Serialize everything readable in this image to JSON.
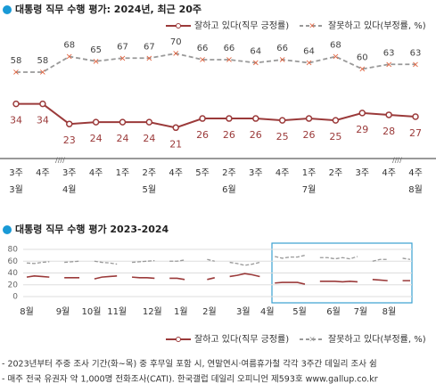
{
  "chart_data": [
    {
      "type": "line",
      "title": "대통령 직무 수행 평가: 2024년, 최근 20주",
      "categories": [
        "3주",
        "4주",
        "3주",
        "4주",
        "1주",
        "2주",
        "4주",
        "5주",
        "2주",
        "3주",
        "4주",
        "1주",
        "2주",
        "3주",
        "4주",
        "4주"
      ],
      "months": [
        "3월",
        null,
        "4월",
        null,
        null,
        "5월",
        null,
        null,
        "6월",
        null,
        null,
        "7월",
        null,
        null,
        null,
        "8월"
      ],
      "series": [
        {
          "name": "잘하고 있다(직무 긍정률)",
          "color": "#9b3a3a",
          "values": [
            34,
            34,
            23,
            24,
            24,
            24,
            21,
            26,
            26,
            26,
            25,
            26,
            25,
            29,
            28,
            27
          ]
        },
        {
          "name": "잘못하고 있다(부정률, %)",
          "color": "#999999",
          "marker_color": "#e0603c",
          "values": [
            58,
            58,
            68,
            65,
            67,
            67,
            70,
            66,
            66,
            64,
            66,
            64,
            68,
            60,
            63,
            63
          ]
        }
      ]
    },
    {
      "type": "line",
      "title": "대통령 직무 수행 평가 2023-2024",
      "x": [
        0,
        1,
        2,
        3,
        4,
        5,
        6,
        7,
        8,
        9,
        10,
        11,
        12,
        13,
        14,
        15,
        16,
        17,
        18,
        19,
        20,
        21,
        22,
        23,
        24,
        25,
        26,
        27,
        28,
        29,
        30,
        31,
        32,
        33,
        34,
        35,
        36,
        37,
        38,
        39,
        40,
        41,
        42,
        43,
        44,
        45,
        46,
        47,
        48,
        49,
        50,
        51
      ],
      "xlim": [
        0,
        51
      ],
      "xticks": [
        {
          "value": 0,
          "label": "8월"
        },
        {
          "value": 4.8,
          "label": "9월"
        },
        {
          "value": 8.6,
          "label": "10월"
        },
        {
          "value": 12,
          "label": "11월"
        },
        {
          "value": 16.7,
          "label": "12월"
        },
        {
          "value": 20.5,
          "label": "1월"
        },
        {
          "value": 24.3,
          "label": "2월"
        },
        {
          "value": 28.8,
          "label": "3월"
        },
        {
          "value": 32,
          "label": "4월"
        },
        {
          "value": 36.3,
          "label": "5월"
        },
        {
          "value": 40.8,
          "label": "6월"
        },
        {
          "value": 44.4,
          "label": "7월"
        },
        {
          "value": 48.2,
          "label": "8월"
        }
      ],
      "ylim": [
        0,
        80
      ],
      "yticks": [
        0,
        20,
        40,
        60,
        80
      ],
      "grid": true,
      "series": [
        {
          "name": "잘하고 있다(직무 긍정률)",
          "color": "#9b3a3a",
          "values": [
            33,
            35,
            34,
            33,
            null,
            32,
            32,
            32,
            null,
            30,
            33,
            34,
            35,
            null,
            33,
            32,
            32,
            31,
            null,
            31,
            31,
            29,
            null,
            null,
            29,
            32,
            null,
            34,
            36,
            39,
            37,
            34,
            null,
            23,
            24,
            24,
            24,
            21,
            null,
            26,
            26,
            26,
            25,
            26,
            25,
            null,
            29,
            28,
            27,
            null,
            27,
            27
          ]
        },
        {
          "name": "잘못하고 있다(부정률, %)",
          "color": "#999999",
          "values": [
            57,
            56,
            58,
            59,
            null,
            58,
            59,
            60,
            null,
            60,
            58,
            57,
            55,
            null,
            58,
            59,
            60,
            61,
            null,
            60,
            60,
            62,
            null,
            null,
            63,
            60,
            null,
            58,
            56,
            53,
            55,
            58,
            null,
            68,
            65,
            67,
            67,
            70,
            null,
            66,
            66,
            64,
            66,
            64,
            68,
            null,
            60,
            63,
            63,
            null,
            65,
            63
          ]
        }
      ]
    }
  ],
  "notes": [
    "- 2023년부터 주중 조사 기간(화~목) 중 후무일 포함 시, 연말연시·여름휴가철 각각 3주간 데일리 조사 쉼",
    "- 매주 전국 유권자 약 1,000명 전화조사(CATI). 한국갤럽 데일리 오피니언 제593호 www.gallup.co.kr"
  ]
}
